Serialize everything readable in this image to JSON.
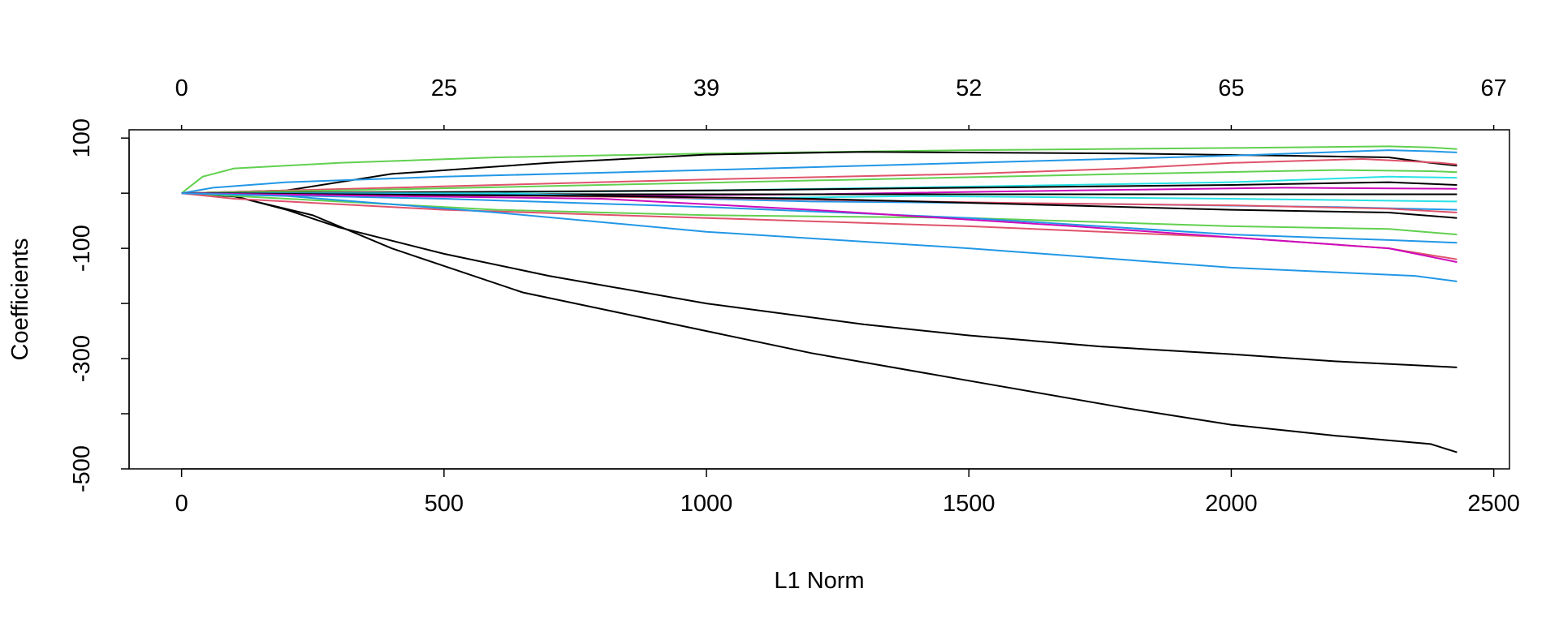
{
  "chart_data": {
    "type": "line",
    "title": "",
    "xlabel": "L1 Norm",
    "ylabel": "Coefficients",
    "xlim": [
      -100,
      2530
    ],
    "ylim": [
      -500,
      115
    ],
    "x_ticks": [
      0,
      500,
      1000,
      1500,
      2000,
      2500
    ],
    "y_ticks": [
      100,
      -100,
      -300,
      -500
    ],
    "top_axis": {
      "positions": [
        0,
        500,
        1000,
        1500,
        2000,
        2500
      ],
      "labels": [
        "0",
        "25",
        "39",
        "52",
        "65",
        "67"
      ]
    },
    "grid": false,
    "legend": "none",
    "palette": [
      "#000000",
      "#DF536B",
      "#61D04F",
      "#2297E6",
      "#28E2E5",
      "#CD0BBC"
    ],
    "series": [
      {
        "color": "#000000",
        "points": [
          [
            0,
            0
          ],
          [
            100,
            -5
          ],
          [
            200,
            -30
          ],
          [
            300,
            -62
          ],
          [
            500,
            -110
          ],
          [
            700,
            -150
          ],
          [
            1000,
            -200
          ],
          [
            1300,
            -238
          ],
          [
            1500,
            -258
          ],
          [
            1750,
            -278
          ],
          [
            2000,
            -292
          ],
          [
            2200,
            -305
          ],
          [
            2350,
            -312
          ],
          [
            2430,
            -316
          ]
        ]
      },
      {
        "color": "#000000",
        "points": [
          [
            0,
            0
          ],
          [
            100,
            -6
          ],
          [
            250,
            -40
          ],
          [
            400,
            -100
          ],
          [
            650,
            -180
          ],
          [
            900,
            -230
          ],
          [
            1200,
            -290
          ],
          [
            1500,
            -340
          ],
          [
            1800,
            -390
          ],
          [
            2000,
            -420
          ],
          [
            2200,
            -440
          ],
          [
            2380,
            -455
          ],
          [
            2430,
            -470
          ]
        ]
      },
      {
        "color": "#61D04F",
        "points": [
          [
            0,
            0
          ],
          [
            40,
            30
          ],
          [
            100,
            45
          ],
          [
            300,
            55
          ],
          [
            600,
            65
          ],
          [
            1000,
            72
          ],
          [
            1500,
            78
          ],
          [
            2000,
            82
          ],
          [
            2300,
            85
          ],
          [
            2380,
            83
          ],
          [
            2430,
            80
          ]
        ]
      },
      {
        "color": "#000000",
        "points": [
          [
            0,
            0
          ],
          [
            200,
            5
          ],
          [
            400,
            35
          ],
          [
            700,
            55
          ],
          [
            1000,
            70
          ],
          [
            1300,
            75
          ],
          [
            1800,
            72
          ],
          [
            2100,
            68
          ],
          [
            2300,
            65
          ],
          [
            2380,
            55
          ],
          [
            2430,
            50
          ]
        ]
      },
      {
        "color": "#2297E6",
        "points": [
          [
            0,
            0
          ],
          [
            60,
            10
          ],
          [
            200,
            20
          ],
          [
            500,
            30
          ],
          [
            1000,
            42
          ],
          [
            1500,
            55
          ],
          [
            2000,
            68
          ],
          [
            2300,
            78
          ],
          [
            2380,
            76
          ],
          [
            2430,
            74
          ]
        ]
      },
      {
        "color": "#DF536B",
        "points": [
          [
            0,
            0
          ],
          [
            200,
            5
          ],
          [
            600,
            15
          ],
          [
            1000,
            25
          ],
          [
            1500,
            35
          ],
          [
            1800,
            45
          ],
          [
            2000,
            55
          ],
          [
            2250,
            62
          ],
          [
            2400,
            55
          ],
          [
            2430,
            52
          ]
        ]
      },
      {
        "color": "#61D04F",
        "points": [
          [
            0,
            0
          ],
          [
            300,
            5
          ],
          [
            800,
            15
          ],
          [
            1300,
            25
          ],
          [
            1800,
            35
          ],
          [
            2200,
            42
          ],
          [
            2380,
            40
          ],
          [
            2430,
            38
          ]
        ]
      },
      {
        "color": "#28E2E5",
        "points": [
          [
            0,
            0
          ],
          [
            400,
            0
          ],
          [
            1000,
            5
          ],
          [
            1500,
            12
          ],
          [
            2000,
            20
          ],
          [
            2300,
            30
          ],
          [
            2430,
            28
          ]
        ]
      },
      {
        "color": "#000000",
        "points": [
          [
            0,
            0
          ],
          [
            500,
            2
          ],
          [
            1000,
            5
          ],
          [
            1500,
            10
          ],
          [
            2000,
            15
          ],
          [
            2300,
            20
          ],
          [
            2430,
            15
          ]
        ]
      },
      {
        "color": "#CD0BBC",
        "points": [
          [
            0,
            0
          ],
          [
            800,
            -5
          ],
          [
            1200,
            -2
          ],
          [
            1700,
            5
          ],
          [
            2100,
            10
          ],
          [
            2430,
            8
          ]
        ]
      },
      {
        "color": "#000000",
        "points": [
          [
            0,
            0
          ],
          [
            800,
            -2
          ],
          [
            1500,
            -2
          ],
          [
            2000,
            -2
          ],
          [
            2430,
            -2
          ]
        ]
      },
      {
        "color": "#28E2E5",
        "points": [
          [
            0,
            0
          ],
          [
            600,
            0
          ],
          [
            1000,
            -10
          ],
          [
            1400,
            -5
          ],
          [
            2000,
            -10
          ],
          [
            2430,
            -15
          ]
        ]
      },
      {
        "color": "#2297E6",
        "points": [
          [
            0,
            0
          ],
          [
            700,
            -3
          ],
          [
            1200,
            -15
          ],
          [
            1800,
            -20
          ],
          [
            2200,
            -25
          ],
          [
            2430,
            -30
          ]
        ]
      },
      {
        "color": "#DF536B",
        "points": [
          [
            0,
            0
          ],
          [
            700,
            -5
          ],
          [
            1100,
            -10
          ],
          [
            1600,
            -18
          ],
          [
            2000,
            -22
          ],
          [
            2300,
            -28
          ],
          [
            2430,
            -35
          ]
        ]
      },
      {
        "color": "#000000",
        "points": [
          [
            0,
            0
          ],
          [
            800,
            -5
          ],
          [
            1200,
            -10
          ],
          [
            1600,
            -20
          ],
          [
            2000,
            -30
          ],
          [
            2300,
            -35
          ],
          [
            2430,
            -45
          ]
        ]
      },
      {
        "color": "#61D04F",
        "points": [
          [
            0,
            0
          ],
          [
            200,
            -10
          ],
          [
            600,
            -30
          ],
          [
            1000,
            -40
          ],
          [
            1500,
            -45
          ],
          [
            2000,
            -60
          ],
          [
            2300,
            -65
          ],
          [
            2430,
            -75
          ]
        ]
      },
      {
        "color": "#2297E6",
        "points": [
          [
            0,
            0
          ],
          [
            500,
            -10
          ],
          [
            1000,
            -25
          ],
          [
            1500,
            -45
          ],
          [
            2000,
            -75
          ],
          [
            2300,
            -85
          ],
          [
            2430,
            -90
          ]
        ]
      },
      {
        "color": "#DF536B",
        "points": [
          [
            0,
            0
          ],
          [
            100,
            -10
          ],
          [
            500,
            -30
          ],
          [
            1000,
            -45
          ],
          [
            1500,
            -60
          ],
          [
            2000,
            -80
          ],
          [
            2300,
            -100
          ],
          [
            2430,
            -120
          ]
        ]
      },
      {
        "color": "#CD0BBC",
        "points": [
          [
            0,
            0
          ],
          [
            800,
            -10
          ],
          [
            1200,
            -30
          ],
          [
            1700,
            -60
          ],
          [
            2000,
            -80
          ],
          [
            2300,
            -100
          ],
          [
            2430,
            -125
          ]
        ]
      },
      {
        "color": "#2297E6",
        "points": [
          [
            0,
            0
          ],
          [
            200,
            -5
          ],
          [
            600,
            -35
          ],
          [
            1000,
            -70
          ],
          [
            1500,
            -100
          ],
          [
            2000,
            -135
          ],
          [
            2350,
            -150
          ],
          [
            2430,
            -160
          ]
        ]
      }
    ]
  }
}
